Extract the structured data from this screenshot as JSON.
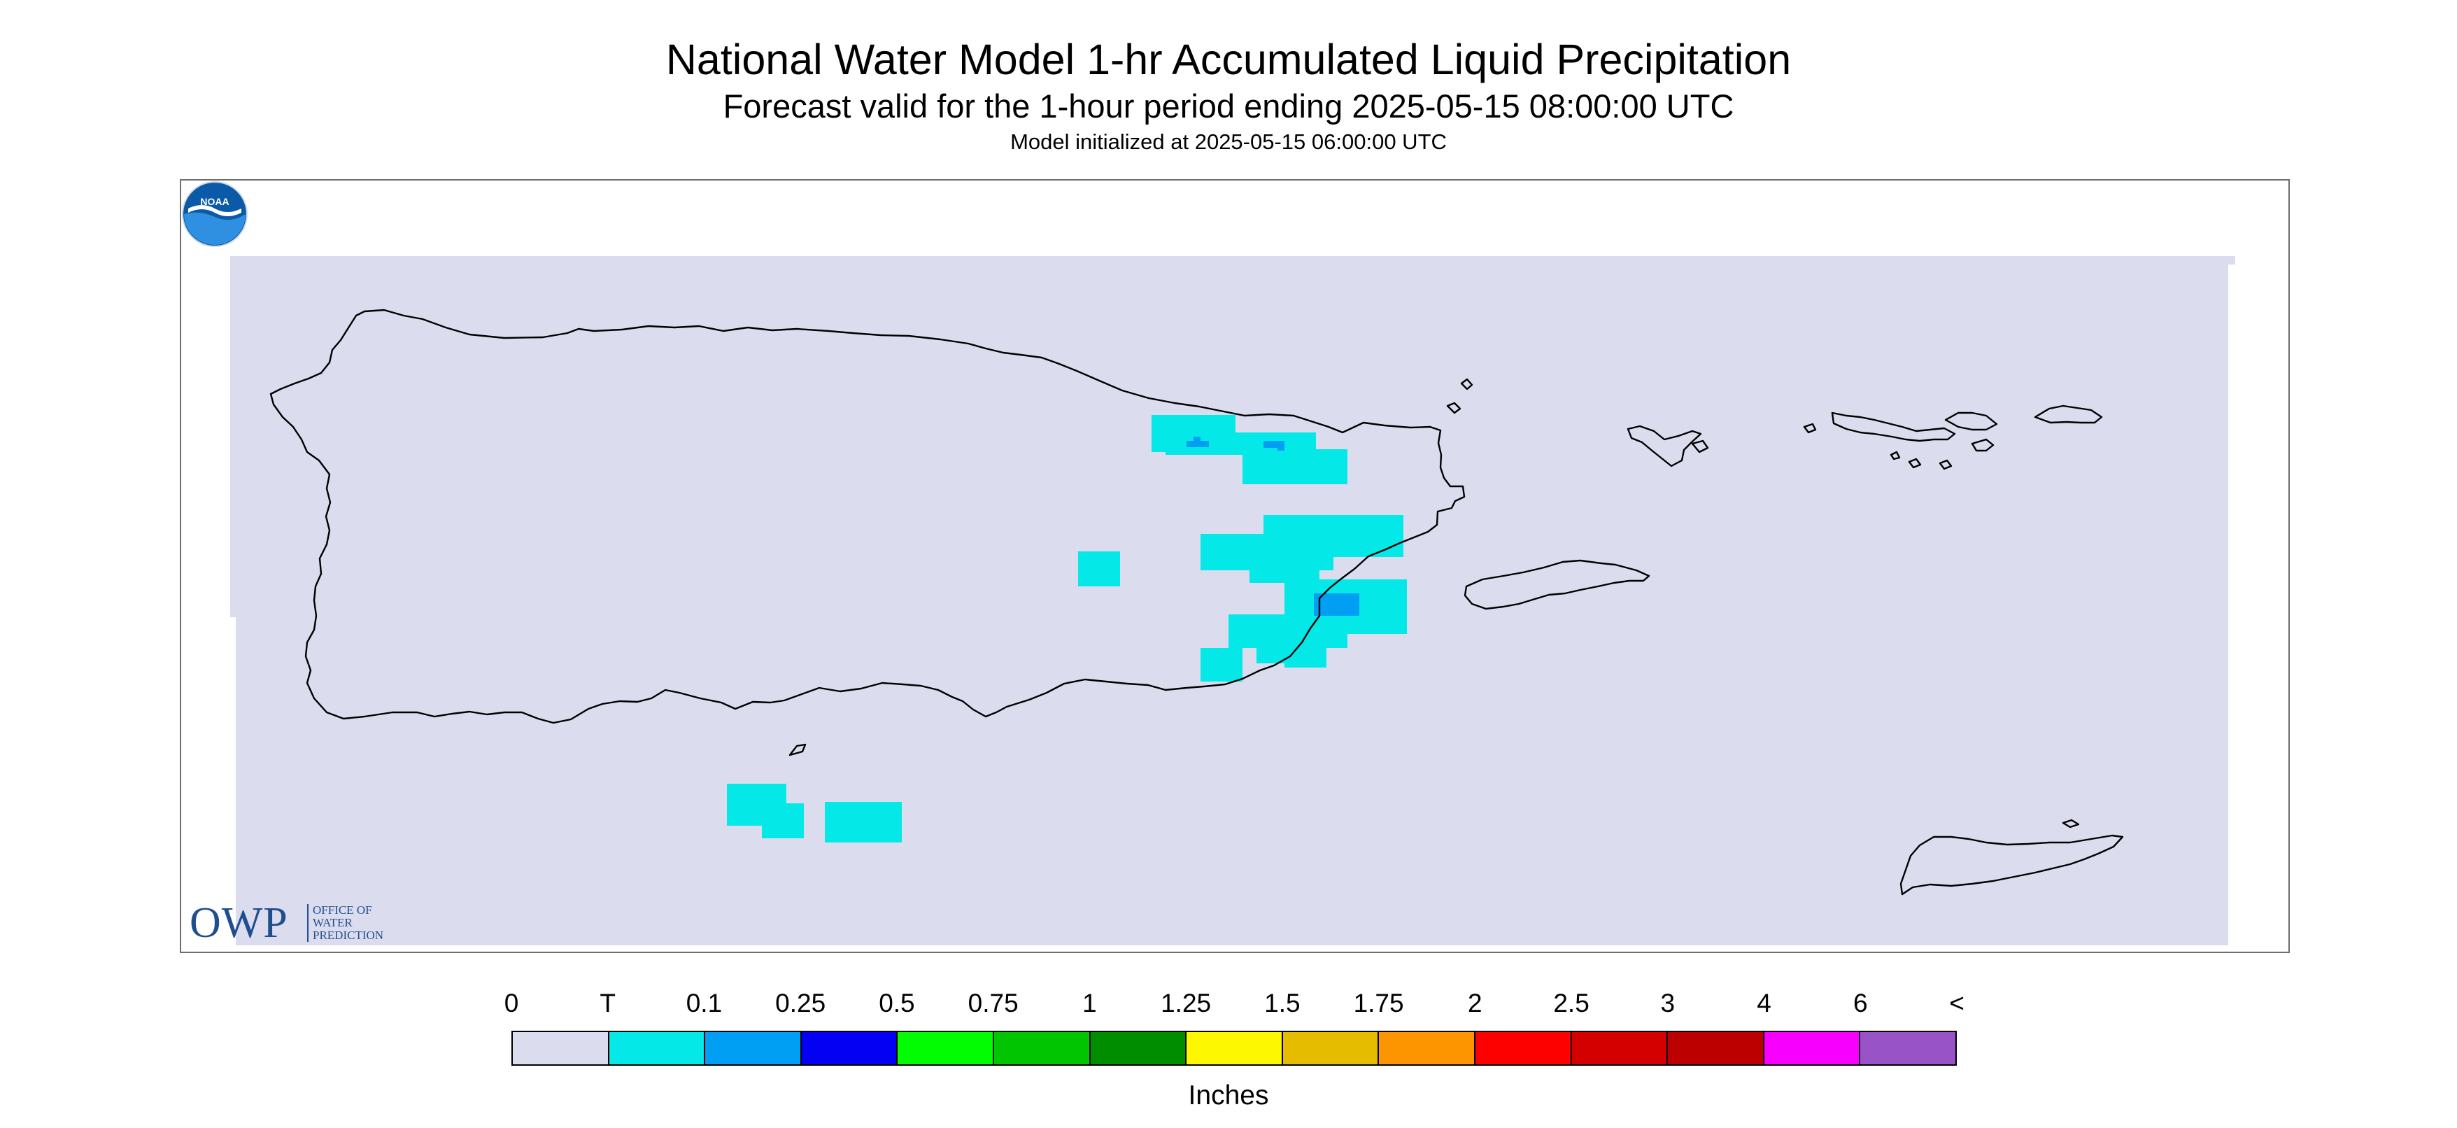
{
  "header": {
    "title": "National Water Model 1-hr Accumulated Liquid Precipitation",
    "subtitle": "Forecast valid for the 1-hour period ending 2025-05-15 08:00:00 UTC",
    "init_line": "Model initialized at 2025-05-15 06:00:00 UTC"
  },
  "map": {
    "background_color": "#dcdcef",
    "coastline_color": "#000000",
    "precip_trace_color": "#04e9e7",
    "precip_010_color": "#019ff4"
  },
  "logos": {
    "owp_letters": "OWP",
    "owp_line1": "OFFICE OF",
    "owp_line2": "WATER",
    "owp_line3": "PREDICTION",
    "noaa_text": "NOAA"
  },
  "legend": {
    "units": "Inches",
    "labels": [
      "0",
      "T",
      "0.1",
      "0.25",
      "0.5",
      "0.75",
      "1",
      "1.25",
      "1.5",
      "1.75",
      "2",
      "2.5",
      "3",
      "4",
      "6",
      "<"
    ],
    "colors": [
      "#dcdcef",
      "#04e9e7",
      "#019ff4",
      "#0300f4",
      "#02fd02",
      "#01c501",
      "#008e00",
      "#fdf802",
      "#e5bc00",
      "#fd9500",
      "#fd0000",
      "#d40000",
      "#bc0000",
      "#f800fd",
      "#9854c6"
    ]
  }
}
